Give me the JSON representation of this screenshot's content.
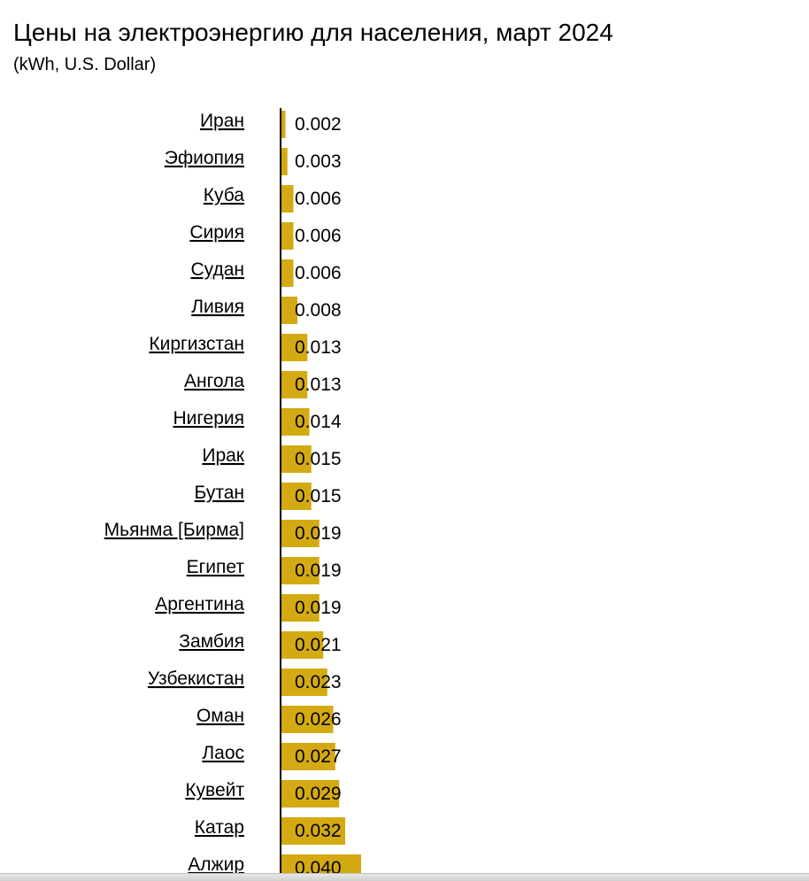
{
  "title": "Цены на электроэнергию для населения, март 2024",
  "subtitle": "(kWh, U.S. Dollar)",
  "colors": {
    "bar": "#d4aa12",
    "axis": "#000000"
  },
  "chart_data": {
    "type": "bar",
    "orientation": "horizontal",
    "title": "Цены на электроэнергию для населения, март 2024",
    "subtitle": "(kWh, U.S. Dollar)",
    "categories": [
      "Иран",
      "Эфиопия",
      "Куба",
      "Сирия",
      "Судан",
      "Ливия",
      "Киргизстан",
      "Ангола",
      "Нигерия",
      "Ирак",
      "Бутан",
      "Мьянма [Бирма]",
      "Египет",
      "Аргентина",
      "Замбия",
      "Узбекистан",
      "Оман",
      "Лаос",
      "Кувейт",
      "Катар",
      "Алжир"
    ],
    "values": [
      0.002,
      0.003,
      0.006,
      0.006,
      0.006,
      0.008,
      0.013,
      0.013,
      0.014,
      0.015,
      0.015,
      0.019,
      0.019,
      0.019,
      0.021,
      0.023,
      0.026,
      0.027,
      0.029,
      0.032,
      0.04
    ],
    "value_labels": [
      "0.002",
      "0.003",
      "0.006",
      "0.006",
      "0.006",
      "0.008",
      "0.013",
      "0.013",
      "0.014",
      "0.015",
      "0.015",
      "0.019",
      "0.019",
      "0.019",
      "0.021",
      "0.023",
      "0.026",
      "0.027",
      "0.029",
      "0.032",
      "0.040"
    ],
    "xlabel": "",
    "ylabel": "",
    "grid": false,
    "legend": "none"
  }
}
